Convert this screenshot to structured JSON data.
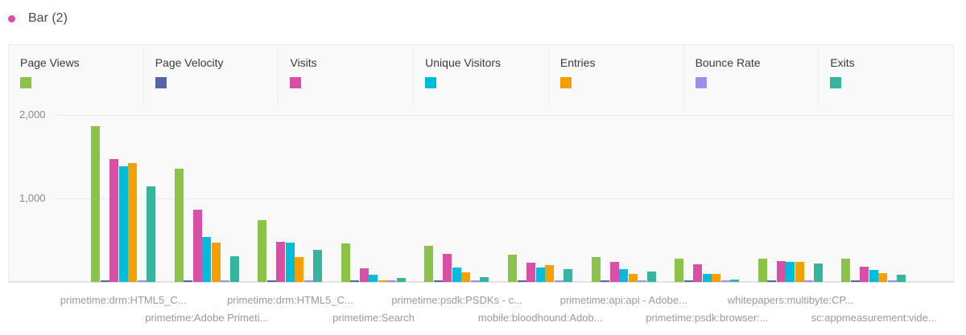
{
  "header": {
    "title": "Bar (2)",
    "dot_color": "#d94fa6"
  },
  "chart_data": {
    "type": "bar",
    "title": "Bar (2)",
    "xlabel": "",
    "ylabel": "",
    "ylim": [
      0,
      2000
    ],
    "yticks": [
      "2,000",
      "1,000"
    ],
    "grid": true,
    "legend_position": "top",
    "categories": [
      "primetime:drm:HTML5_C...",
      "primetime:Adobe Primeti...",
      "primetime:drm:HTML5_C...",
      "primetime:Search",
      "primetime:psdk:PSDKs - c...",
      "mobile:bloodhound:Adob...",
      "primetime:api:api - Adobe...",
      "primetime:psdk:browser:...",
      "whitepapers:multibyte:CP...",
      "sc:appmeasurement:vide..."
    ],
    "series": [
      {
        "name": "Page Views",
        "color": "#8bc34a",
        "values": [
          1865,
          1355,
          740,
          460,
          435,
          325,
          300,
          280,
          280,
          280
        ]
      },
      {
        "name": "Page Velocity",
        "color": "#5567a6",
        "values": [
          5,
          5,
          5,
          5,
          5,
          5,
          5,
          5,
          5,
          5
        ]
      },
      {
        "name": "Visits",
        "color": "#d94fa6",
        "values": [
          1470,
          865,
          480,
          165,
          335,
          230,
          240,
          210,
          250,
          180
        ]
      },
      {
        "name": "Unique Visitors",
        "color": "#00bcd8",
        "values": [
          1385,
          540,
          470,
          85,
          175,
          170,
          150,
          95,
          245,
          140
        ]
      },
      {
        "name": "Entries",
        "color": "#f5a000",
        "values": [
          1425,
          470,
          300,
          20,
          115,
          200,
          95,
          95,
          245,
          110
        ]
      },
      {
        "name": "Bounce Rate",
        "color": "#9e8ee6",
        "values": [
          5,
          5,
          5,
          5,
          5,
          5,
          5,
          5,
          5,
          5
        ]
      },
      {
        "name": "Exits",
        "color": "#36b59e",
        "values": [
          1145,
          310,
          385,
          50,
          60,
          155,
          125,
          30,
          220,
          85
        ]
      }
    ]
  }
}
